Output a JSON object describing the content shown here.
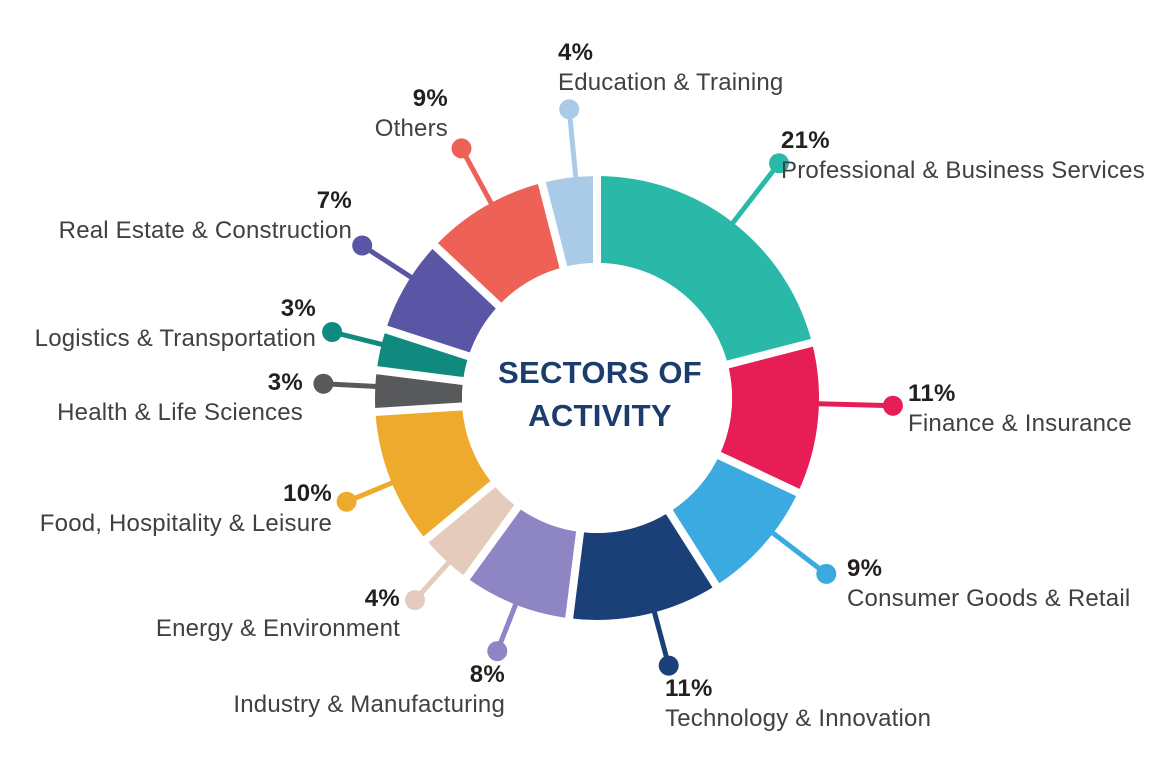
{
  "title": {
    "line1": "SECTORS OF",
    "line2": "ACTIVITY"
  },
  "colors": {
    "background": "#ffffff",
    "title_text": "#1d3c6e",
    "percent_text": "#231f20",
    "label_text": "#414042"
  },
  "chart_data": {
    "type": "pie",
    "subtype": "donut",
    "title": "SECTORS OF ACTIVITY",
    "unit": "%",
    "order": "clockwise-from-top",
    "legend_position": "around-chart-with-leader-lines",
    "slices": [
      {
        "label": "Professional & Business Services",
        "value": 21,
        "color": "#2ab9a9"
      },
      {
        "label": "Finance & Insurance",
        "value": 11,
        "color": "#e61e55"
      },
      {
        "label": "Consumer Goods & Retail",
        "value": 9,
        "color": "#3baae1"
      },
      {
        "label": "Technology & Innovation",
        "value": 11,
        "color": "#1b4077"
      },
      {
        "label": "Industry & Manufacturing",
        "value": 8,
        "color": "#8e86c4"
      },
      {
        "label": "Energy & Environment",
        "value": 4,
        "color": "#e4cbbc"
      },
      {
        "label": "Food, Hospitality & Leisure",
        "value": 10,
        "color": "#edaa2d"
      },
      {
        "label": "Health & Life Sciences",
        "value": 3,
        "color": "#58595b"
      },
      {
        "label": "Logistics & Transportation",
        "value": 3,
        "color": "#108a7e"
      },
      {
        "label": "Real Estate & Construction",
        "value": 7,
        "color": "#5b55a5"
      },
      {
        "label": "Others",
        "value": 9,
        "color": "#ee6157"
      },
      {
        "label": "Education & Training",
        "value": 4,
        "color": "#a9cbe8"
      }
    ]
  }
}
